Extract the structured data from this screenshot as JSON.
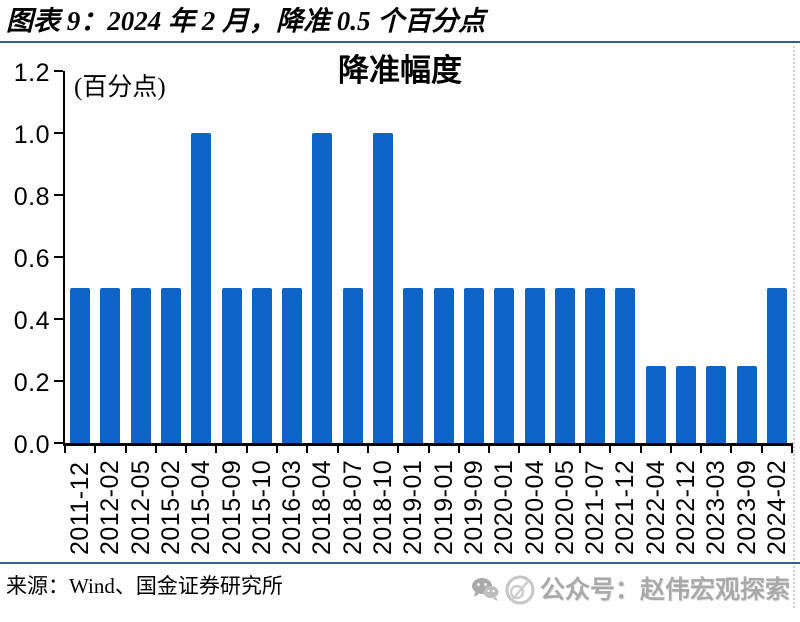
{
  "header": {
    "title": "图表 9：2024 年 2 月，降准 0.5 个百分点"
  },
  "chart_data": {
    "type": "bar",
    "title": "降准幅度",
    "unit_label": "(百分点)",
    "categories": [
      "2011-12",
      "2012-02",
      "2012-05",
      "2015-02",
      "2015-04",
      "2015-09",
      "2015-10",
      "2016-03",
      "2018-04",
      "2018-07",
      "2018-10",
      "2019-01",
      "2019-01",
      "2019-09",
      "2020-01",
      "2020-04",
      "2020-05",
      "2021-07",
      "2021-12",
      "2022-04",
      "2022-12",
      "2023-03",
      "2023-09",
      "2024-02"
    ],
    "values": [
      0.5,
      0.5,
      0.5,
      0.5,
      1.0,
      0.5,
      0.5,
      0.5,
      1.0,
      0.5,
      1.0,
      0.5,
      0.5,
      0.5,
      0.5,
      0.5,
      0.5,
      0.5,
      0.5,
      0.25,
      0.25,
      0.25,
      0.25,
      0.5
    ],
    "xlabel": "",
    "ylabel": "(百分点)",
    "ylim": [
      0,
      1.2
    ],
    "yticks": [
      0.0,
      0.2,
      0.4,
      0.6,
      0.8,
      1.0,
      1.2
    ],
    "ytick_labels": [
      "0.0",
      "0.2",
      "0.4",
      "0.6",
      "0.8",
      "1.0",
      "1.2"
    ],
    "grid": "off",
    "legend": "none",
    "bar_color": "#0E63C6"
  },
  "footer": {
    "source": "来源：Wind、国金证券研究所",
    "watermark": "公众号：赵伟宏观探索"
  },
  "colors": {
    "bar": "#0E63C6",
    "divider": "#2E6094",
    "watermark": "#A9A9A9"
  }
}
